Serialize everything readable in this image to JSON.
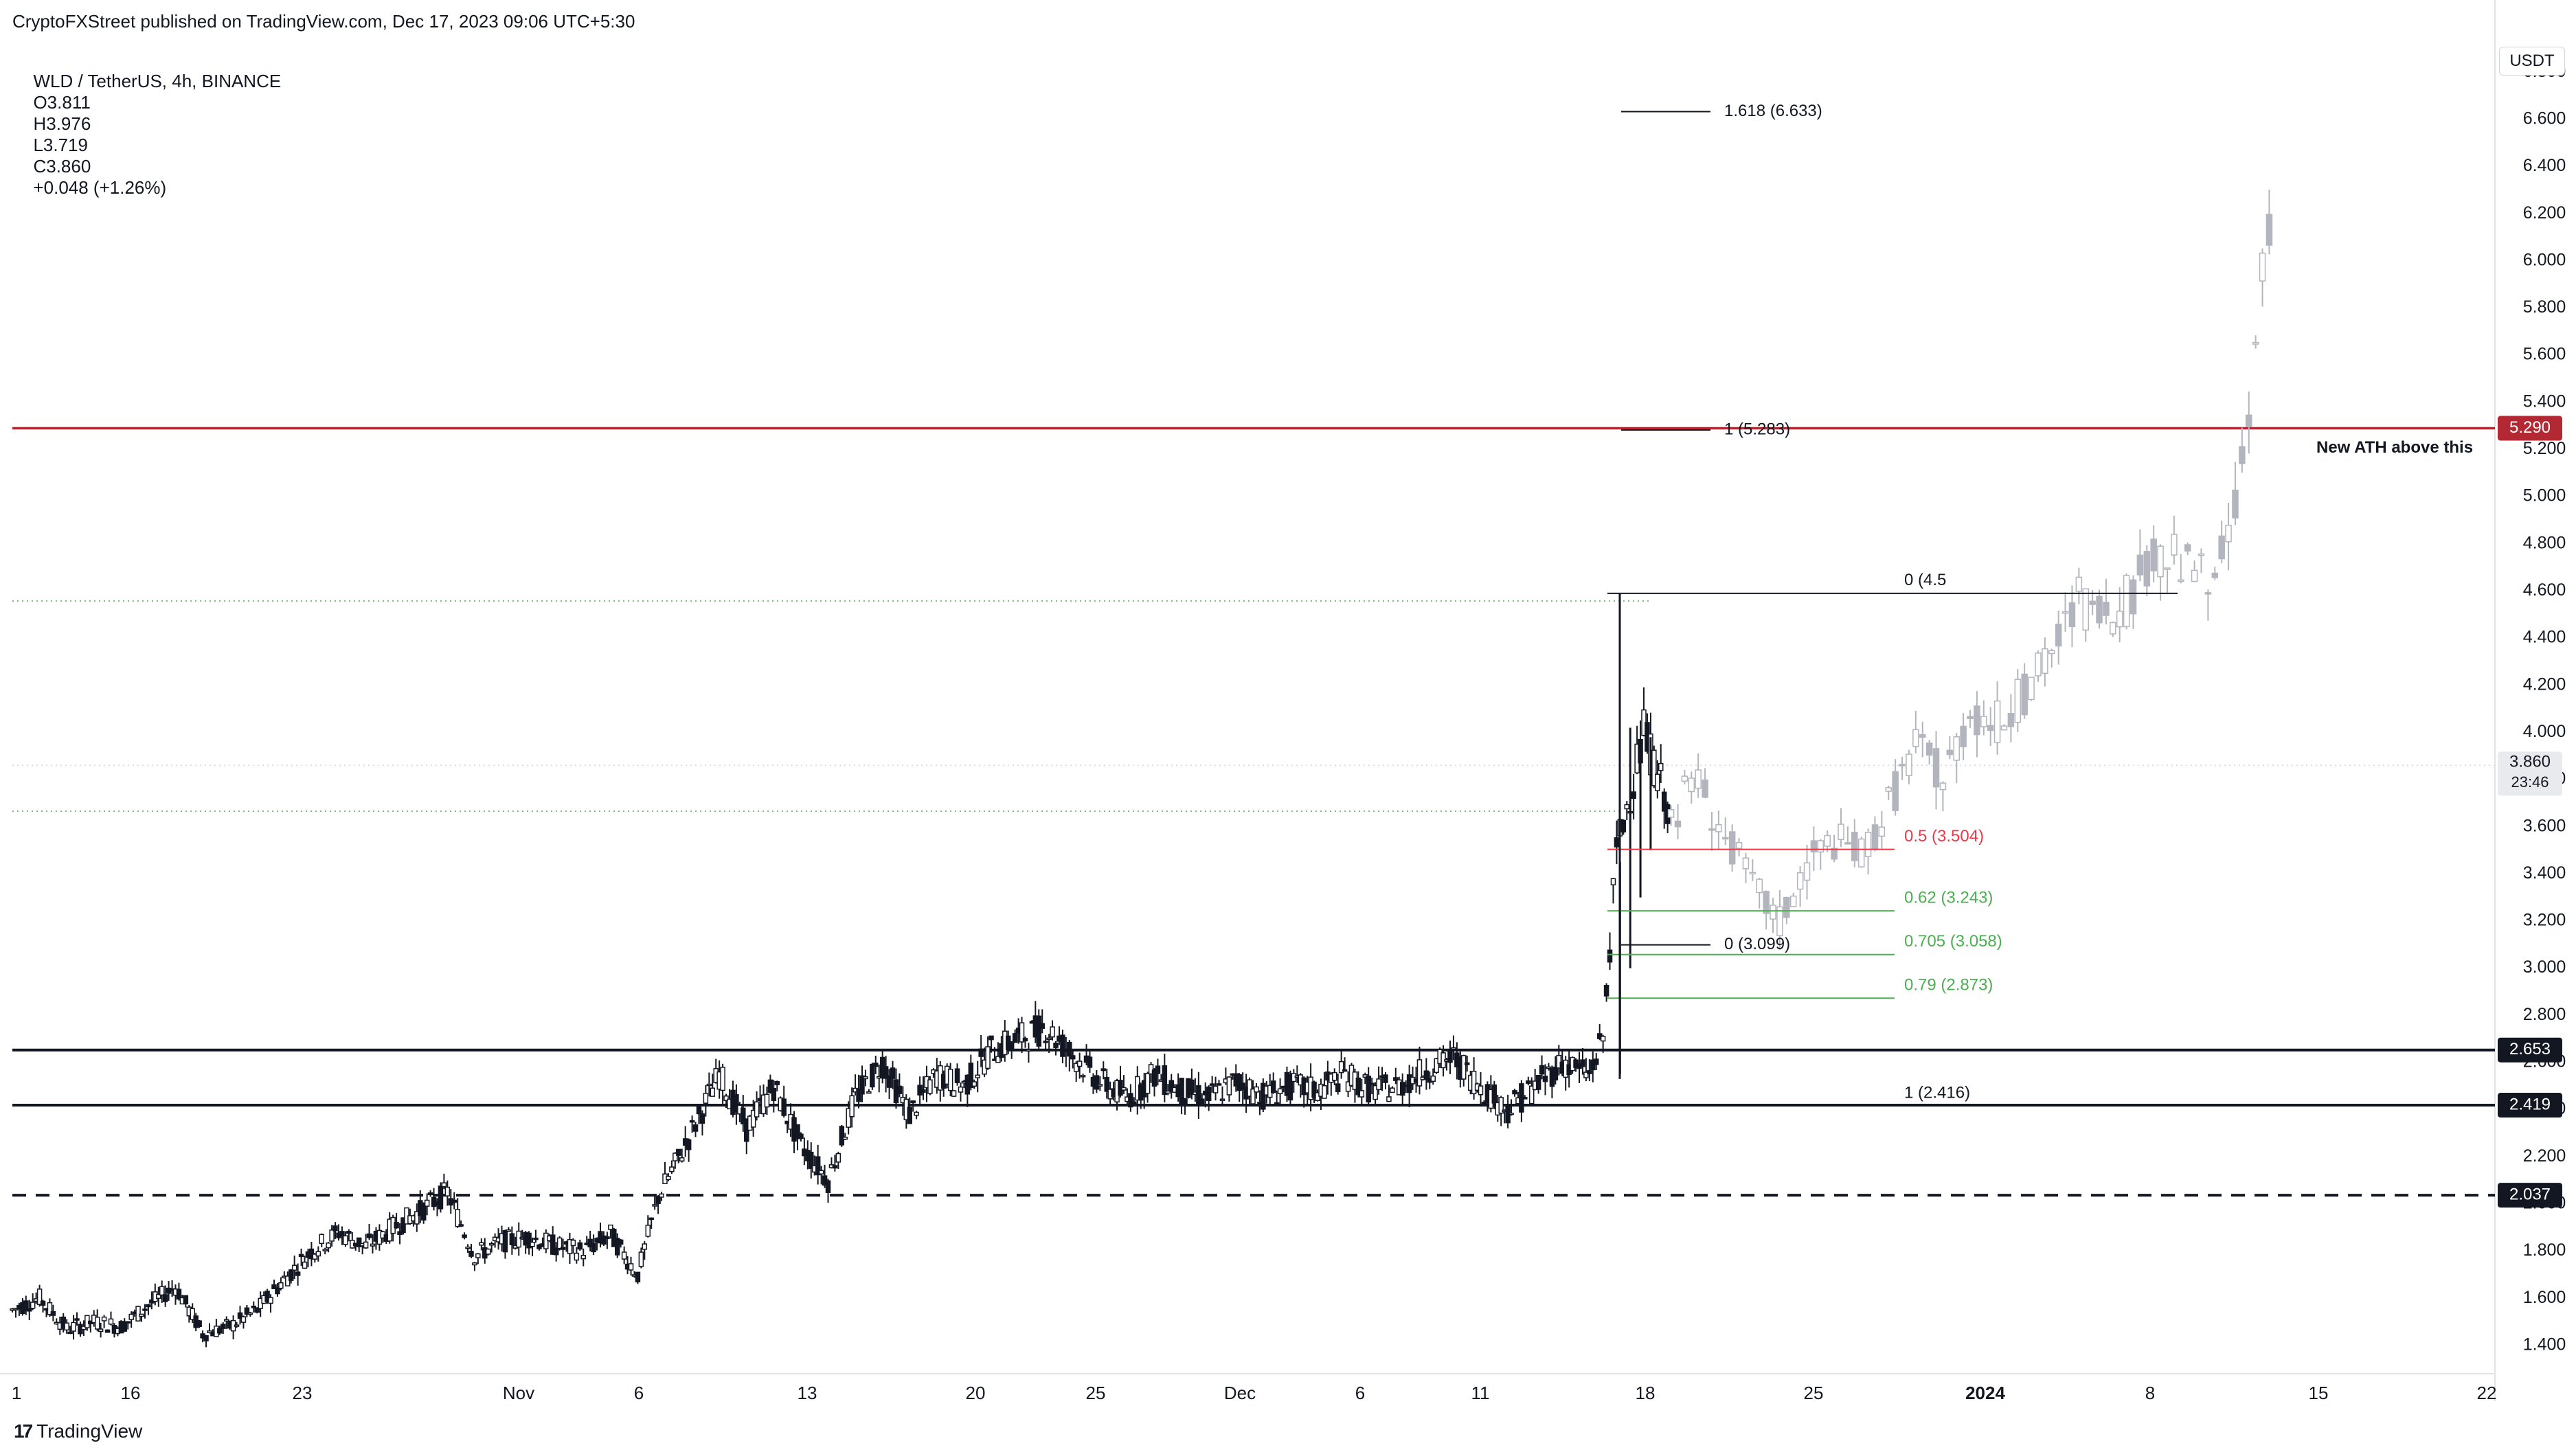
{
  "header": {
    "publisher": "CryptoFXStreet published on TradingView.com, Dec 17, 2023 09:06 UTC+5:30",
    "symbol": "WLD / TetherUS, 4h, BINANCE",
    "open": "O3.811",
    "high": "H3.976",
    "low": "L3.719",
    "close": "C3.860",
    "change": "+0.048 (+1.26%)"
  },
  "footer": {
    "brand": "TradingView",
    "logo": "17"
  },
  "price_axis": {
    "currency": "USDT"
  },
  "annotations": {
    "ath_label": "New ATH above this"
  },
  "colors": {
    "candle": "#131722",
    "projection": "#b2b5be",
    "ath_line": "#b22833",
    "fib_red": "#f23645",
    "fib_green": "#4caf50",
    "level_badge": "#131722"
  },
  "chart_data": {
    "type": "candlestick",
    "title": "WLD / TetherUS, 4h, BINANCE",
    "ylim": [
      1.28,
      6.99
    ],
    "y_ticks": [
      "1.400",
      "1.600",
      "1.800",
      "2.000",
      "2.200",
      "2.400",
      "2.600",
      "2.800",
      "3.000",
      "3.200",
      "3.400",
      "3.600",
      "3.800",
      "4.000",
      "4.200",
      "4.400",
      "4.600",
      "4.800",
      "5.000",
      "5.200",
      "5.400",
      "5.600",
      "5.800",
      "6.000",
      "6.200",
      "6.400",
      "6.600",
      "6.800"
    ],
    "x_ticks": [
      {
        "label": "1",
        "bold": false
      },
      {
        "label": "16",
        "bold": false
      },
      {
        "label": "23",
        "bold": false
      },
      {
        "label": "Nov",
        "bold": false
      },
      {
        "label": "6",
        "bold": false
      },
      {
        "label": "13",
        "bold": false
      },
      {
        "label": "20",
        "bold": false
      },
      {
        "label": "25",
        "bold": false
      },
      {
        "label": "Dec",
        "bold": false
      },
      {
        "label": "6",
        "bold": false
      },
      {
        "label": "11",
        "bold": false
      },
      {
        "label": "18",
        "bold": false
      },
      {
        "label": "25",
        "bold": false
      },
      {
        "label": "2024",
        "bold": true
      },
      {
        "label": "8",
        "bold": false
      },
      {
        "label": "15",
        "bold": false
      },
      {
        "label": "22",
        "bold": false
      }
    ],
    "history_path": [
      [
        0,
        1.55
      ],
      [
        4,
        1.6
      ],
      [
        8,
        1.47
      ],
      [
        12,
        1.5
      ],
      [
        16,
        1.48
      ],
      [
        20,
        1.57
      ],
      [
        24,
        1.65
      ],
      [
        28,
        1.45
      ],
      [
        32,
        1.48
      ],
      [
        36,
        1.55
      ],
      [
        40,
        1.68
      ],
      [
        44,
        1.8
      ],
      [
        48,
        1.88
      ],
      [
        52,
        1.82
      ],
      [
        56,
        1.9
      ],
      [
        60,
        1.97
      ],
      [
        64,
        2.05
      ],
      [
        68,
        1.78
      ],
      [
        72,
        1.84
      ],
      [
        76,
        1.86
      ],
      [
        80,
        1.82
      ],
      [
        84,
        1.8
      ],
      [
        88,
        1.87
      ],
      [
        92,
        1.7
      ],
      [
        95,
        2.03
      ],
      [
        99,
        2.25
      ],
      [
        104,
        2.55
      ],
      [
        108,
        2.32
      ],
      [
        112,
        2.5
      ],
      [
        116,
        2.25
      ],
      [
        120,
        2.1
      ],
      [
        124,
        2.45
      ],
      [
        128,
        2.6
      ],
      [
        132,
        2.38
      ],
      [
        136,
        2.55
      ],
      [
        140,
        2.5
      ],
      [
        144,
        2.65
      ],
      [
        148,
        2.7
      ],
      [
        152,
        2.75
      ],
      [
        156,
        2.63
      ],
      [
        160,
        2.52
      ],
      [
        164,
        2.45
      ],
      [
        168,
        2.55
      ],
      [
        172,
        2.48
      ],
      [
        176,
        2.45
      ],
      [
        180,
        2.52
      ],
      [
        184,
        2.46
      ],
      [
        188,
        2.5
      ],
      [
        192,
        2.48
      ],
      [
        196,
        2.55
      ],
      [
        200,
        2.48
      ],
      [
        204,
        2.5
      ],
      [
        208,
        2.57
      ],
      [
        212,
        2.62
      ],
      [
        216,
        2.5
      ],
      [
        220,
        2.4
      ],
      [
        224,
        2.5
      ],
      [
        228,
        2.6
      ],
      [
        232,
        2.55
      ],
      [
        234,
        2.7
      ],
      [
        236,
        3.5
      ],
      [
        240,
        4.0
      ],
      [
        244,
        3.65
      ]
    ],
    "projection_path": [
      [
        244,
        3.65
      ],
      [
        248,
        3.8
      ],
      [
        252,
        3.55
      ],
      [
        256,
        3.35
      ],
      [
        260,
        3.2
      ],
      [
        264,
        3.45
      ],
      [
        268,
        3.55
      ],
      [
        272,
        3.48
      ],
      [
        276,
        3.7
      ],
      [
        280,
        3.95
      ],
      [
        284,
        3.8
      ],
      [
        288,
        4.1
      ],
      [
        292,
        4.05
      ],
      [
        296,
        4.15
      ],
      [
        300,
        4.35
      ],
      [
        304,
        4.55
      ],
      [
        308,
        4.45
      ],
      [
        312,
        4.6
      ],
      [
        316,
        4.75
      ],
      [
        320,
        4.7
      ],
      [
        324,
        4.6
      ],
      [
        328,
        5.1
      ],
      [
        330,
        5.6
      ],
      [
        332,
        6.2
      ],
      [
        333,
        5.9
      ]
    ],
    "levels": [
      {
        "value": 2.653,
        "label": "2.653",
        "style": "solid"
      },
      {
        "value": 2.419,
        "label": "2.419",
        "style": "solid"
      },
      {
        "value": 2.037,
        "label": "2.037",
        "style": "dashed"
      }
    ],
    "ath_level": {
      "value": 5.29,
      "label": "5.290"
    },
    "current_price": {
      "value": 3.86,
      "label": "3.860",
      "countdown": "23:46"
    },
    "fib_extension": [
      {
        "label": "1.618 (6.633)",
        "value": 6.633
      },
      {
        "label": "1 (5.283)",
        "value": 5.283
      },
      {
        "label": "0 (3.099)",
        "value": 3.099
      }
    ],
    "fib_retracement": [
      {
        "label": "0 (4.5",
        "value": 4.59,
        "color": "black"
      },
      {
        "label": "0.5 (3.504)",
        "value": 3.504,
        "color": "red"
      },
      {
        "label": "0.62 (3.243)",
        "value": 3.243,
        "color": "green"
      },
      {
        "label": "0.705 (3.058)",
        "value": 3.058,
        "color": "green"
      },
      {
        "label": "0.79 (2.873)",
        "value": 2.873,
        "color": "green"
      },
      {
        "label": "1 (2.416)",
        "value": 2.416,
        "color": "black"
      }
    ]
  }
}
